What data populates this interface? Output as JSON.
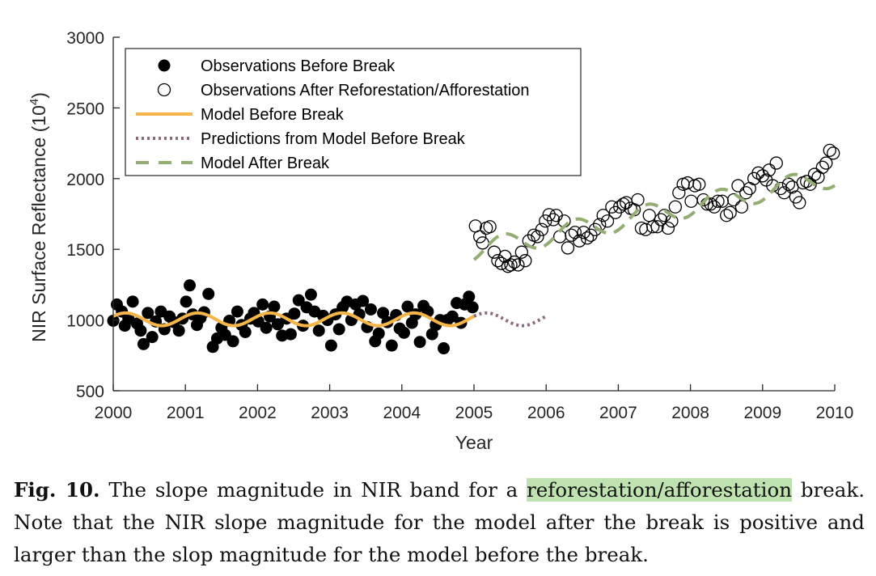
{
  "chart_data": {
    "type": "scatter",
    "xlabel": "Year",
    "ylabel": "NIR Surface Reflectance (10",
    "ylabel_exponent": "4",
    "ylabel_close": ")",
    "xlim": [
      2000,
      2010
    ],
    "ylim": [
      500,
      3000
    ],
    "xticks": [
      2000,
      2001,
      2002,
      2003,
      2004,
      2005,
      2006,
      2007,
      2008,
      2009,
      2010
    ],
    "yticks": [
      500,
      1000,
      1500,
      2000,
      2500,
      3000
    ],
    "grid": false,
    "legend_position": "top-left",
    "legend": [
      "Observations Before Break",
      "Observations After Reforestation/Afforestation",
      "Model Before Break",
      "Predictions from Model Before Break",
      "Model After Break"
    ],
    "colors": {
      "model_before": "#f5b547",
      "predictions": "#8c6a7e",
      "model_after": "#93ad72"
    },
    "break_year": 2005.0,
    "series": [
      {
        "name": "Observations Before Break",
        "style": "filled-circle",
        "x": [
          2000.0,
          2000.05,
          2000.12,
          2000.16,
          2000.21,
          2000.27,
          2000.33,
          2000.38,
          2000.42,
          2000.48,
          2000.54,
          2000.59,
          2000.66,
          2000.71,
          2000.78,
          2000.84,
          2000.91,
          2000.96,
          2001.01,
          2001.06,
          2001.1,
          2001.16,
          2001.21,
          2001.26,
          2001.32,
          2001.38,
          2001.44,
          2001.5,
          2001.55,
          2001.61,
          2001.66,
          2001.72,
          2001.78,
          2001.83,
          2001.9,
          2001.95,
          2002.01,
          2002.07,
          2002.12,
          2002.17,
          2002.23,
          2002.28,
          2002.34,
          2002.4,
          2002.46,
          2002.51,
          2002.57,
          2002.63,
          2002.68,
          2002.74,
          2002.79,
          2002.85,
          2002.91,
          2002.97,
          2003.02,
          2003.08,
          2003.13,
          2003.18,
          2003.24,
          2003.3,
          2003.36,
          2003.41,
          2003.46,
          2003.52,
          2003.57,
          2003.63,
          2003.68,
          2003.74,
          2003.8,
          2003.86,
          2003.92,
          2003.97,
          2004.03,
          2004.08,
          2004.14,
          2004.19,
          2004.25,
          2004.3,
          2004.36,
          2004.42,
          2004.47,
          2004.53,
          2004.58,
          2004.63,
          2004.7,
          2004.76,
          2004.82,
          2004.87,
          2004.93,
          2004.98
        ],
        "y": [
          995,
          1110,
          1060,
          960,
          1010,
          1130,
          975,
          925,
          830,
          1050,
          880,
          990,
          1060,
          935,
          1025,
          985,
          925,
          1010,
          1130,
          1245,
          1040,
          965,
          1015,
          1055,
          1185,
          810,
          870,
          945,
          895,
          995,
          850,
          1060,
          965,
          915,
          1010,
          1050,
          990,
          1110,
          945,
          1025,
          1095,
          970,
          890,
          1010,
          900,
          1045,
          1140,
          960,
          1090,
          1180,
          1060,
          925,
          1030,
          1000,
          820,
          1040,
          935,
          1090,
          1130,
          1000,
          1110,
          1040,
          1135,
          950,
          1075,
          850,
          905,
          1050,
          985,
          820,
          1035,
          940,
          910,
          1095,
          980,
          1040,
          845,
          1100,
          1060,
          900,
          965,
          1000,
          800,
          1000,
          1025,
          1120,
          980,
          1110,
          1165,
          1090
        ]
      },
      {
        "name": "Observations After Reforestation/Afforestation",
        "style": "open-circle",
        "x": [
          2005.02,
          2005.08,
          2005.12,
          2005.17,
          2005.22,
          2005.28,
          2005.33,
          2005.38,
          2005.43,
          2005.47,
          2005.51,
          2005.56,
          2005.61,
          2005.66,
          2005.71,
          2005.76,
          2005.83,
          2005.88,
          2005.94,
          2005.99,
          2006.04,
          2006.1,
          2006.14,
          2006.19,
          2006.25,
          2006.3,
          2006.35,
          2006.4,
          2006.46,
          2006.52,
          2006.57,
          2006.62,
          2006.68,
          2006.74,
          2006.79,
          2006.85,
          2006.91,
          2006.96,
          2007.02,
          2007.07,
          2007.11,
          2007.17,
          2007.22,
          2007.27,
          2007.32,
          2007.38,
          2007.43,
          2007.48,
          2007.54,
          2007.59,
          2007.64,
          2007.69,
          2007.74,
          2007.79,
          2007.84,
          2007.9,
          2007.96,
          2008.01,
          2008.06,
          2008.12,
          2008.18,
          2008.23,
          2008.28,
          2008.33,
          2008.38,
          2008.44,
          2008.5,
          2008.55,
          2008.6,
          2008.66,
          2008.71,
          2008.77,
          2008.82,
          2008.88,
          2008.94,
          2009.0,
          2009.05,
          2009.09,
          2009.14,
          2009.19,
          2009.25,
          2009.3,
          2009.36,
          2009.41,
          2009.46,
          2009.51,
          2009.56,
          2009.61,
          2009.66,
          2009.72,
          2009.77,
          2009.83,
          2009.88,
          2009.93,
          2009.98
        ],
        "y": [
          1665,
          1590,
          1545,
          1650,
          1660,
          1480,
          1420,
          1400,
          1450,
          1380,
          1390,
          1410,
          1390,
          1480,
          1420,
          1560,
          1600,
          1590,
          1640,
          1700,
          1745,
          1710,
          1740,
          1590,
          1700,
          1510,
          1600,
          1620,
          1560,
          1620,
          1580,
          1600,
          1640,
          1675,
          1740,
          1700,
          1800,
          1760,
          1800,
          1820,
          1830,
          1790,
          1780,
          1850,
          1650,
          1640,
          1740,
          1660,
          1660,
          1710,
          1740,
          1650,
          1700,
          1800,
          1900,
          1960,
          1970,
          1840,
          1950,
          1960,
          1850,
          1820,
          1820,
          1800,
          1840,
          1840,
          1740,
          1760,
          1850,
          1950,
          1800,
          1900,
          1930,
          2000,
          2040,
          2020,
          1990,
          2060,
          1950,
          2110,
          1930,
          1900,
          1960,
          1940,
          1870,
          1830,
          1970,
          1980,
          1960,
          2030,
          2010,
          2080,
          2110,
          2200,
          2180
        ]
      },
      {
        "name": "Model Before Break",
        "style": "solid-line",
        "model": {
          "x_start": 2000.0,
          "x_end": 2005.0,
          "mean": 1005,
          "slope_per_year": 0,
          "amplitude": 45,
          "phase": 0.5
        }
      },
      {
        "name": "Predictions from Model Before Break",
        "style": "dotted-line",
        "model": {
          "x_start": 2005.0,
          "x_end": 2006.0,
          "mean": 1005,
          "slope_per_year": 0,
          "amplitude": 45,
          "phase": 0.5
        }
      },
      {
        "name": "Model After Break",
        "style": "dashed-line",
        "model": {
          "x_start": 2005.0,
          "x_end": 2010.0,
          "mean": 1490,
          "slope_per_year": 105,
          "amplitude": 75,
          "phase": -1.0
        }
      }
    ]
  },
  "caption": {
    "fig_label": "Fig. 10.",
    "text_before": " The slope magnitude in NIR band for a ",
    "highlight": "reforestation/afforestation",
    "text_after": " break. Note that the NIR slope magnitude for the model after the break is positive and larger than the slop magnitude for the model before the break."
  }
}
